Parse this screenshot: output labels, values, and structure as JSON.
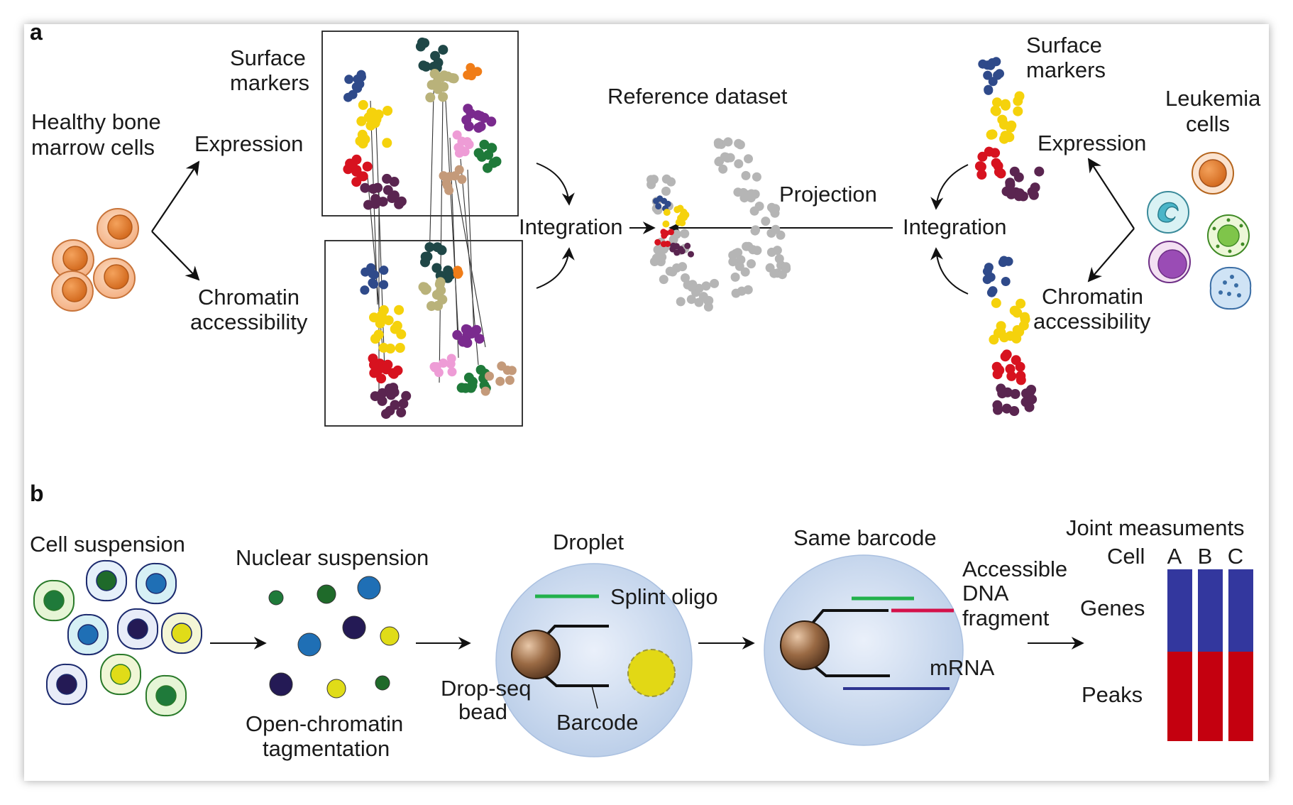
{
  "panel_a": {
    "letter": "a",
    "left": {
      "source": [
        "Healthy bone",
        "marrow cells"
      ],
      "branch_top": "Expression",
      "branch_bottom": [
        "Chromatin",
        "accessibility"
      ],
      "markers": [
        "Surface",
        "markers"
      ]
    },
    "center": {
      "integration": "Integration",
      "reference": "Reference dataset",
      "projection": "Projection"
    },
    "right": {
      "integration": "Integration",
      "markers": [
        "Surface",
        "markers"
      ],
      "branch_top": "Expression",
      "branch_bottom": [
        "Chromatin",
        "accessibility"
      ],
      "source": [
        "Leukemia",
        "cells"
      ]
    }
  },
  "panel_b": {
    "letter": "b",
    "cell_suspension": "Cell suspension",
    "nuclear_suspension": "Nuclear suspension",
    "tagmentation": [
      "Open-chromatin",
      "tagmentation"
    ],
    "droplet": "Droplet",
    "splint_oligo": "Splint oligo",
    "bead": [
      "Drop-seq",
      "bead"
    ],
    "barcode": "Barcode",
    "same_barcode": "Same barcode",
    "fragment": [
      "Accessible",
      "DNA",
      "fragment"
    ],
    "mrna": "mRNA",
    "joint": {
      "title": "Joint measuments",
      "cell_label": "Cell",
      "columns": [
        "A",
        "B",
        "C"
      ],
      "genes": "Genes",
      "peaks": "Peaks"
    }
  },
  "colors": {
    "blue": "#2f4a8a",
    "yellow": "#f5d20c",
    "red": "#d7121f",
    "plum": "#5a2550",
    "darkteal": "#1f4747",
    "khaki": "#b9b27a",
    "orange": "#f07d18",
    "purple": "#7a2a8e",
    "pink": "#ee9cd6",
    "green": "#1f7a3a",
    "tan": "#c49a7a",
    "grey": "#b5b5b5",
    "genes_bar": "#33379e",
    "peaks_bar": "#c4000f"
  }
}
